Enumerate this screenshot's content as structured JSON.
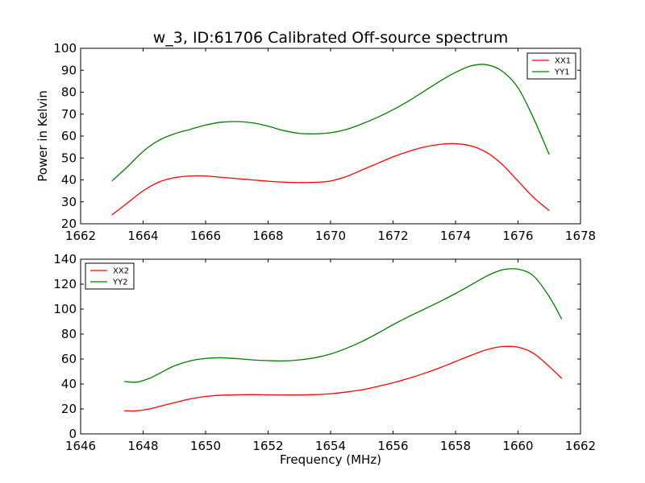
{
  "colors": {
    "red": "#ff0000",
    "green": "#008000",
    "axis": "#000000"
  },
  "chart_data": [
    {
      "type": "line",
      "title": "w_3, ID:61706 Calibrated Off-source spectrum",
      "xlabel": "",
      "ylabel": "Power in Kelvin",
      "xlim": [
        1662,
        1678
      ],
      "ylim": [
        20,
        100
      ],
      "xticks": [
        1662,
        1664,
        1666,
        1668,
        1670,
        1672,
        1674,
        1676,
        1678
      ],
      "yticks": [
        20,
        30,
        40,
        50,
        60,
        70,
        80,
        90,
        100
      ],
      "legend": "top-right",
      "series": [
        {
          "name": "XX1",
          "color": "#ff0000",
          "x": [
            1663.0,
            1663.5,
            1664.0,
            1664.5,
            1665.0,
            1665.5,
            1666.0,
            1666.5,
            1667.0,
            1667.5,
            1668.0,
            1668.5,
            1669.0,
            1669.5,
            1670.0,
            1670.5,
            1671.0,
            1671.5,
            1672.0,
            1672.5,
            1673.0,
            1673.5,
            1674.0,
            1674.5,
            1675.0,
            1675.5,
            1676.0,
            1676.5,
            1677.0
          ],
          "y": [
            24,
            29.5,
            35,
            39,
            41,
            41.8,
            41.8,
            41.2,
            40.6,
            40,
            39.4,
            39,
            38.8,
            38.9,
            39.5,
            41.5,
            44.5,
            47.5,
            50.5,
            53,
            55,
            56.2,
            56.5,
            55.5,
            52.5,
            47,
            39.5,
            32,
            26
          ]
        },
        {
          "name": "YY1",
          "color": "#008000",
          "x": [
            1663.0,
            1663.5,
            1664.0,
            1664.5,
            1665.0,
            1665.5,
            1666.0,
            1666.5,
            1667.0,
            1667.5,
            1668.0,
            1668.5,
            1669.0,
            1669.5,
            1670.0,
            1670.5,
            1671.0,
            1671.5,
            1672.0,
            1672.5,
            1673.0,
            1673.5,
            1674.0,
            1674.5,
            1675.0,
            1675.5,
            1676.0,
            1676.5,
            1677.0
          ],
          "y": [
            39.5,
            46,
            53,
            58,
            61,
            63,
            65,
            66.3,
            66.6,
            66,
            64.5,
            62.5,
            61.2,
            61,
            61.5,
            63,
            65.5,
            68.5,
            72,
            76,
            80.5,
            85,
            89,
            92,
            92.5,
            89.5,
            82,
            68,
            51.5
          ]
        }
      ]
    },
    {
      "type": "line",
      "title": "",
      "xlabel": "Frequency (MHz)",
      "ylabel": "",
      "xlim": [
        1646,
        1662
      ],
      "ylim": [
        0,
        140
      ],
      "xticks": [
        1646,
        1648,
        1650,
        1652,
        1654,
        1656,
        1658,
        1660,
        1662
      ],
      "yticks": [
        0,
        20,
        40,
        60,
        80,
        100,
        120,
        140
      ],
      "legend": "top-left",
      "series": [
        {
          "name": "XX2",
          "color": "#ff0000",
          "x": [
            1647.4,
            1647.8,
            1648.2,
            1648.6,
            1649.0,
            1649.5,
            1650.0,
            1650.5,
            1651.0,
            1651.5,
            1652.0,
            1652.5,
            1653.0,
            1653.5,
            1654.0,
            1654.5,
            1655.0,
            1655.5,
            1656.0,
            1656.5,
            1657.0,
            1657.5,
            1658.0,
            1658.5,
            1659.0,
            1659.5,
            1660.0,
            1660.5,
            1661.0,
            1661.4
          ],
          "y": [
            18.5,
            18.5,
            20,
            22.5,
            25,
            28,
            30,
            31,
            31.3,
            31.5,
            31.3,
            31.2,
            31.2,
            31.5,
            32.2,
            33.5,
            35.3,
            38,
            41,
            44.5,
            48.5,
            53,
            58,
            63,
            67.5,
            70,
            69.5,
            64.5,
            54,
            44.5
          ]
        },
        {
          "name": "YY2",
          "color": "#008000",
          "x": [
            1647.4,
            1647.8,
            1648.2,
            1648.6,
            1649.0,
            1649.5,
            1650.0,
            1650.5,
            1651.0,
            1651.5,
            1652.0,
            1652.5,
            1653.0,
            1653.5,
            1654.0,
            1654.5,
            1655.0,
            1655.5,
            1656.0,
            1656.5,
            1657.0,
            1657.5,
            1658.0,
            1658.5,
            1659.0,
            1659.5,
            1660.0,
            1660.5,
            1661.0,
            1661.4
          ],
          "y": [
            42,
            41.5,
            44.5,
            49.5,
            54.5,
            58.5,
            60.5,
            61,
            60.3,
            59.3,
            58.7,
            58.5,
            59.3,
            61,
            64,
            68.5,
            74,
            80.5,
            87.5,
            94,
            100,
            106,
            112.5,
            119.5,
            126.5,
            131.5,
            132,
            126.5,
            110,
            92
          ]
        }
      ]
    }
  ]
}
